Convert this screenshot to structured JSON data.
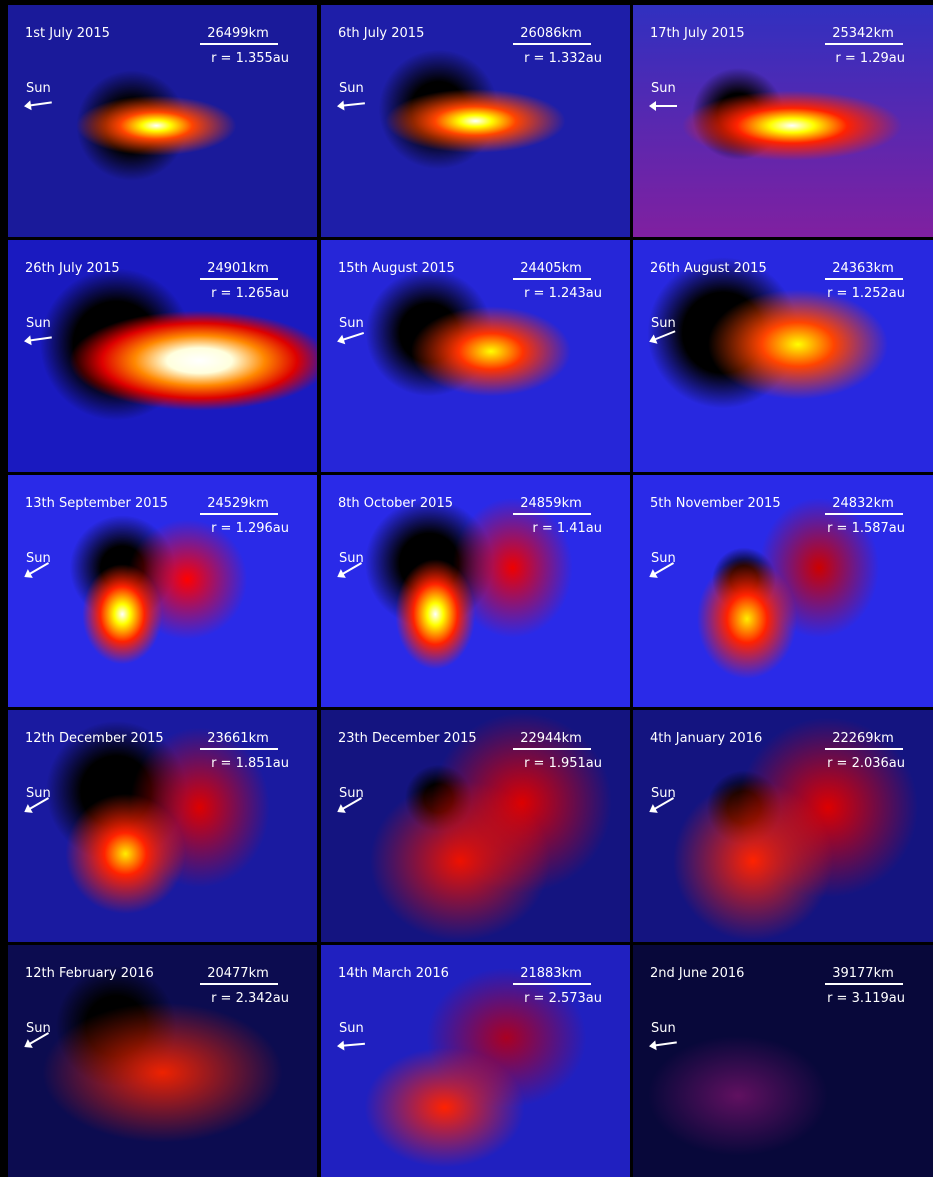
{
  "panels": [
    {
      "date": "1st July 2015",
      "scale": "26499km",
      "r": "r = 1.355au",
      "sun": "Sun"
    },
    {
      "date": "6th July 2015",
      "scale": "26086km",
      "r": "r = 1.332au",
      "sun": "Sun"
    },
    {
      "date": "17th July 2015",
      "scale": "25342km",
      "r": "r = 1.29au",
      "sun": "Sun"
    },
    {
      "date": "26th July 2015",
      "scale": "24901km",
      "r": "r = 1.265au",
      "sun": "Sun"
    },
    {
      "date": "15th August 2015",
      "scale": "24405km",
      "r": "r = 1.243au",
      "sun": "Sun"
    },
    {
      "date": "26th August 2015",
      "scale": "24363km",
      "r": "r = 1.252au",
      "sun": "Sun"
    },
    {
      "date": "13th September 2015",
      "scale": "24529km",
      "r": "r = 1.296au",
      "sun": "Sun"
    },
    {
      "date": "8th October 2015",
      "scale": "24859km",
      "r": "r = 1.41au",
      "sun": "Sun"
    },
    {
      "date": "5th November 2015",
      "scale": "24832km",
      "r": "r = 1.587au",
      "sun": "Sun"
    },
    {
      "date": "12th December 2015",
      "scale": "23661km",
      "r": "r = 1.851au",
      "sun": "Sun"
    },
    {
      "date": "23th December 2015",
      "scale": "22944km",
      "r": "r = 1.951au",
      "sun": "Sun"
    },
    {
      "date": "4th January 2016",
      "scale": "22269km",
      "r": "r = 2.036au",
      "sun": "Sun"
    },
    {
      "date": "12th February 2016",
      "scale": "20477km",
      "r": "r = 2.342au",
      "sun": "Sun"
    },
    {
      "date": "14th March 2016",
      "scale": "21883km",
      "r": "r = 2.573au",
      "sun": "Sun"
    },
    {
      "date": "2nd June 2016",
      "scale": "39177km",
      "r": "r = 3.119au",
      "sun": "Sun"
    }
  ]
}
